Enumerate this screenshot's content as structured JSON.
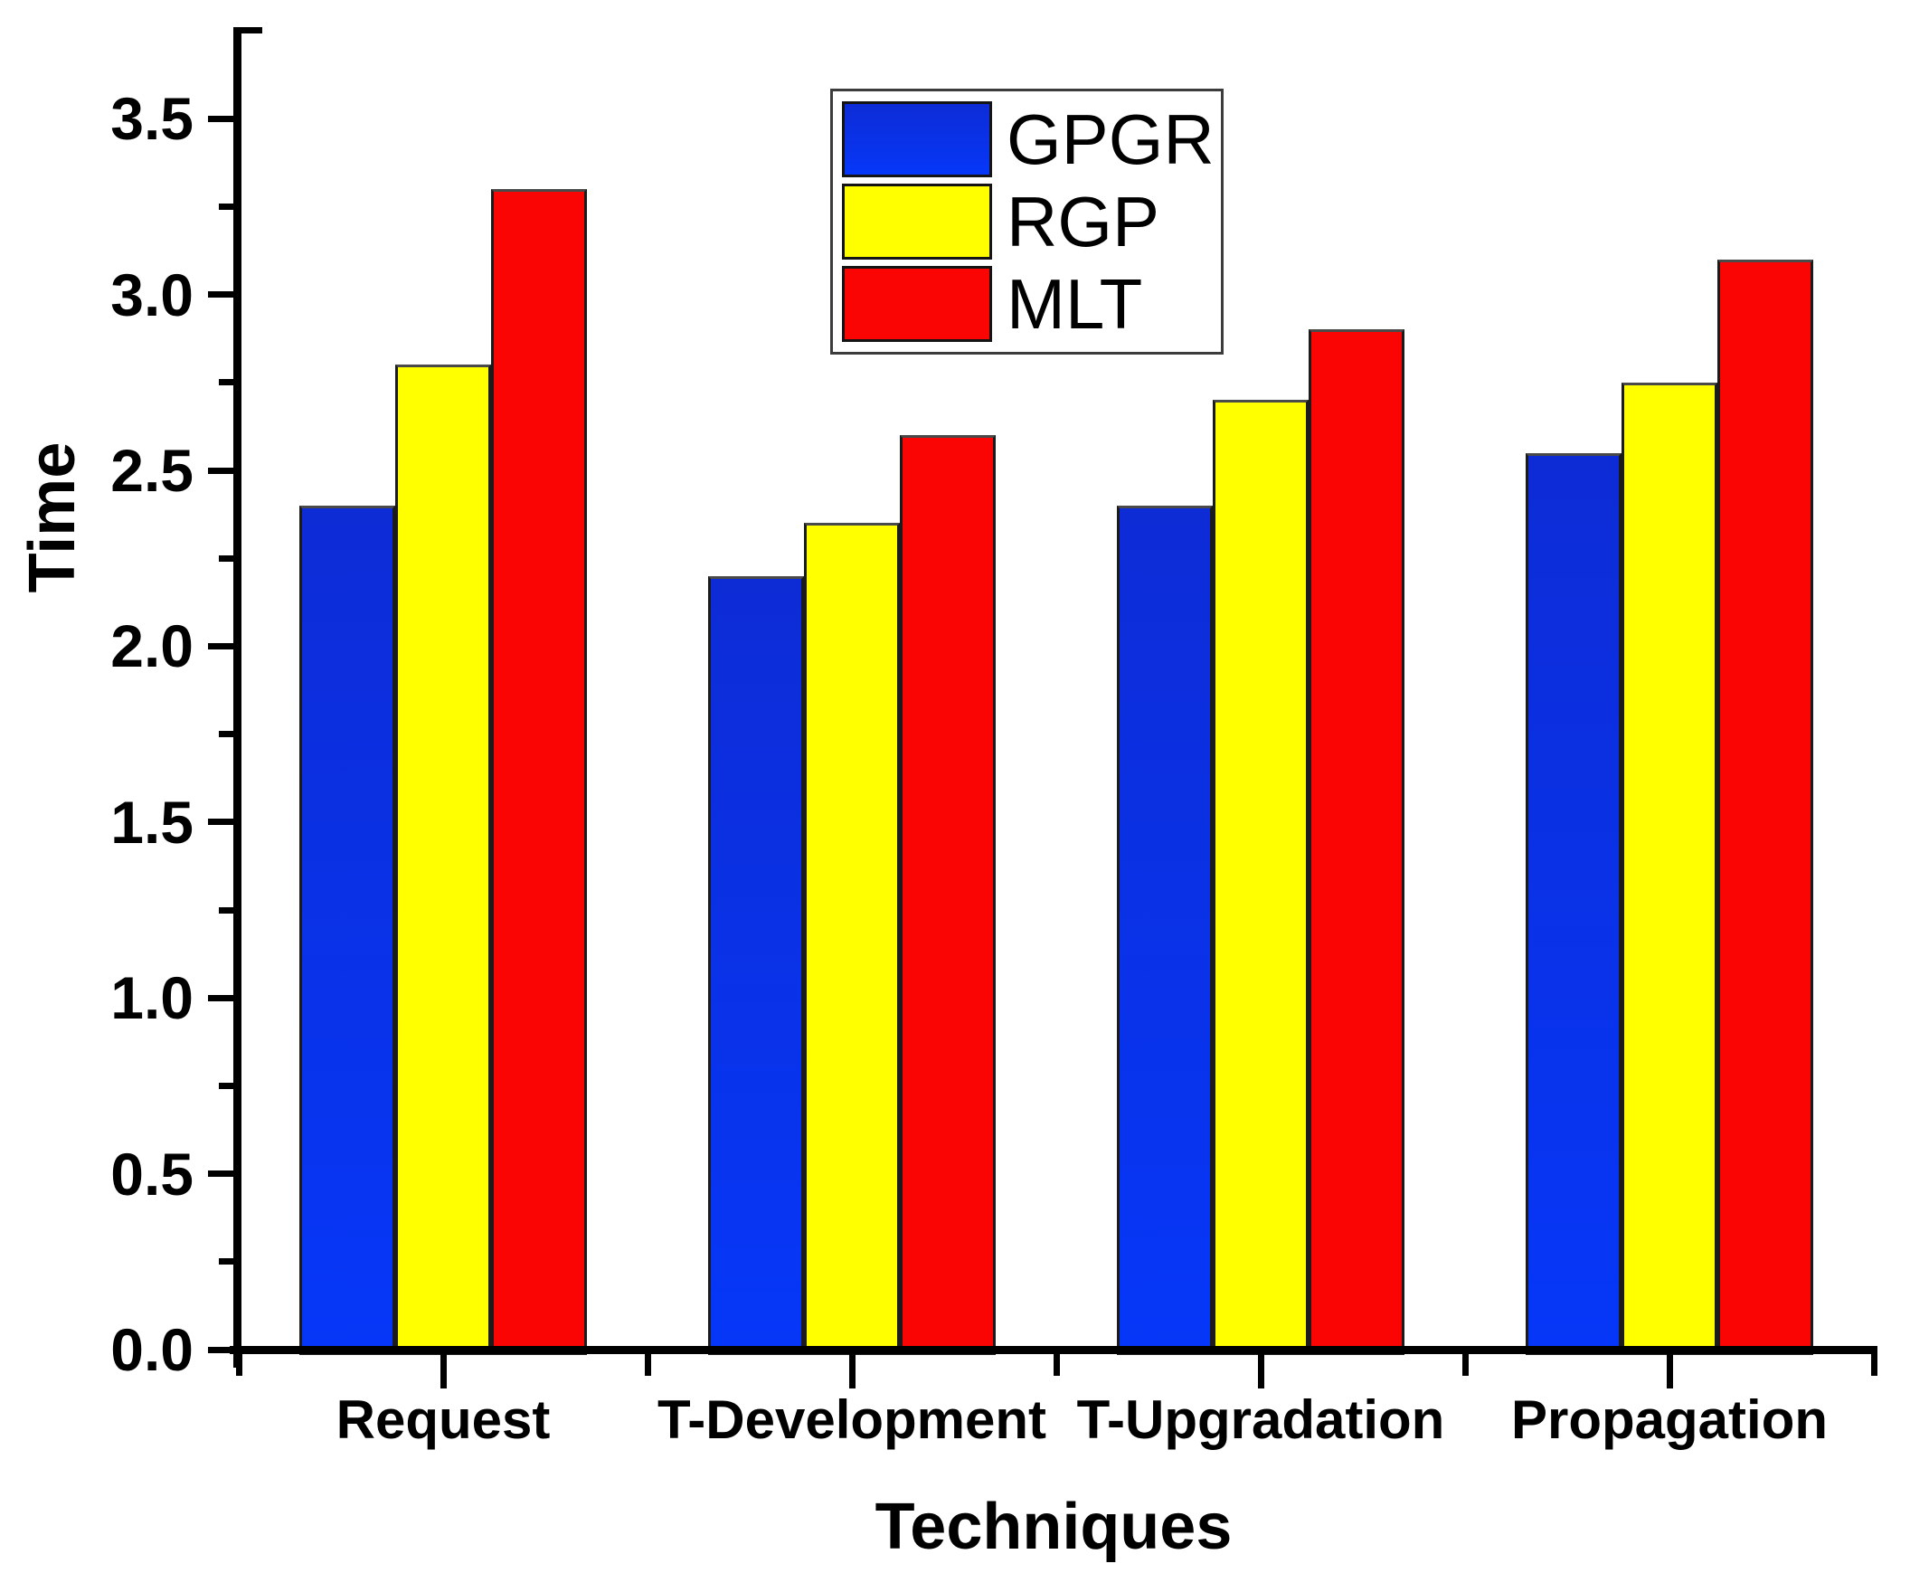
{
  "chart_data": {
    "type": "bar",
    "title": "",
    "xlabel": "Techniques",
    "ylabel": "Time",
    "categories": [
      "Request",
      "T-Development",
      "T-Upgradation",
      "Propagation"
    ],
    "series": [
      {
        "name": "GPGR",
        "color": "#0633f0",
        "gradient": [
          "#0d2cd6",
          "#0637f8"
        ],
        "values": [
          2.4,
          2.2,
          2.4,
          2.55
        ]
      },
      {
        "name": "RGP",
        "color": "#ffff00",
        "values": [
          2.8,
          2.35,
          2.7,
          2.75
        ]
      },
      {
        "name": "MLT",
        "color": "#fb0404",
        "values": [
          3.3,
          2.6,
          2.9,
          3.1
        ]
      }
    ],
    "ylim": [
      0,
      3.75
    ],
    "y_major_step": 0.5,
    "y_minor_step": 0.25,
    "y_tick_labels": [
      "0.0",
      "0.5",
      "1.0",
      "1.5",
      "2.0",
      "2.5",
      "3.0",
      "3.5"
    ],
    "legend_position": "top-center",
    "grid": false,
    "axis_color": "#000000",
    "background_color": "#ffffff"
  }
}
